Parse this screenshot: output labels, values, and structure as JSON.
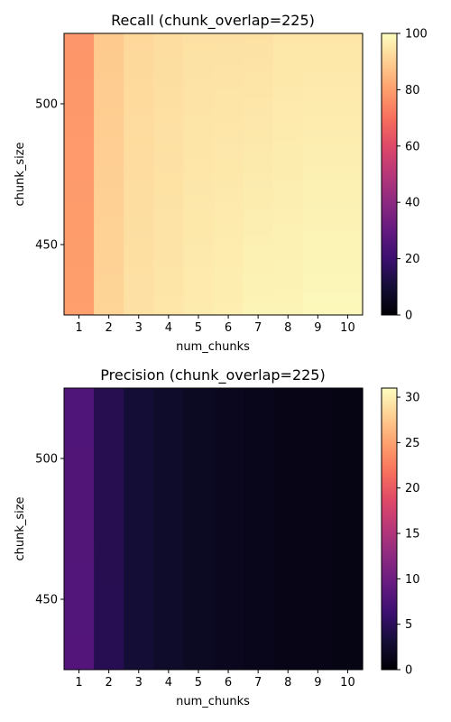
{
  "chart_data": [
    {
      "type": "heatmap",
      "title": "Recall (chunk_overlap=225)",
      "xlabel": "num_chunks",
      "ylabel": "chunk_size",
      "x": [
        1,
        2,
        3,
        4,
        5,
        6,
        7,
        8,
        9,
        10
      ],
      "x_ticks": [
        "1",
        "2",
        "3",
        "4",
        "5",
        "6",
        "7",
        "8",
        "9",
        "10"
      ],
      "y_ticks": [
        "500",
        "450"
      ],
      "ylim": [
        425,
        525
      ],
      "y_tick_values": [
        500,
        450
      ],
      "colormap": "magma",
      "colorbar_range": [
        0,
        100
      ],
      "colorbar_ticks": [
        "0",
        "20",
        "40",
        "60",
        "80",
        "100"
      ],
      "colorbar_tick_values": [
        0,
        20,
        40,
        60,
        80,
        100
      ],
      "values_by_num_chunks": {
        "at_chunk_size_525": [
          78,
          89,
          92,
          93,
          94,
          94,
          94,
          95,
          95,
          95
        ],
        "at_chunk_size_425": [
          80,
          91,
          94,
          95,
          96,
          97,
          98,
          98,
          99,
          99
        ]
      }
    },
    {
      "type": "heatmap",
      "title": "Precision (chunk_overlap=225)",
      "xlabel": "num_chunks",
      "ylabel": "chunk_size",
      "x": [
        1,
        2,
        3,
        4,
        5,
        6,
        7,
        8,
        9,
        10
      ],
      "x_ticks": [
        "1",
        "2",
        "3",
        "4",
        "5",
        "6",
        "7",
        "8",
        "9",
        "10"
      ],
      "y_ticks": [
        "500",
        "450"
      ],
      "ylim": [
        425,
        525
      ],
      "y_tick_values": [
        500,
        450
      ],
      "colormap": "magma",
      "colorbar_range": [
        0,
        31
      ],
      "colorbar_ticks": [
        "0",
        "5",
        "10",
        "15",
        "20",
        "25",
        "30"
      ],
      "colorbar_tick_values": [
        0,
        5,
        10,
        15,
        20,
        25,
        30
      ],
      "values_by_num_chunks": {
        "at_chunk_size_525": [
          7.8,
          4.5,
          3.1,
          2.4,
          1.9,
          1.6,
          1.4,
          1.2,
          1.1,
          1.0
        ],
        "at_chunk_size_425": [
          8.0,
          4.6,
          3.1,
          2.4,
          1.9,
          1.6,
          1.4,
          1.2,
          1.1,
          1.0
        ]
      }
    }
  ]
}
